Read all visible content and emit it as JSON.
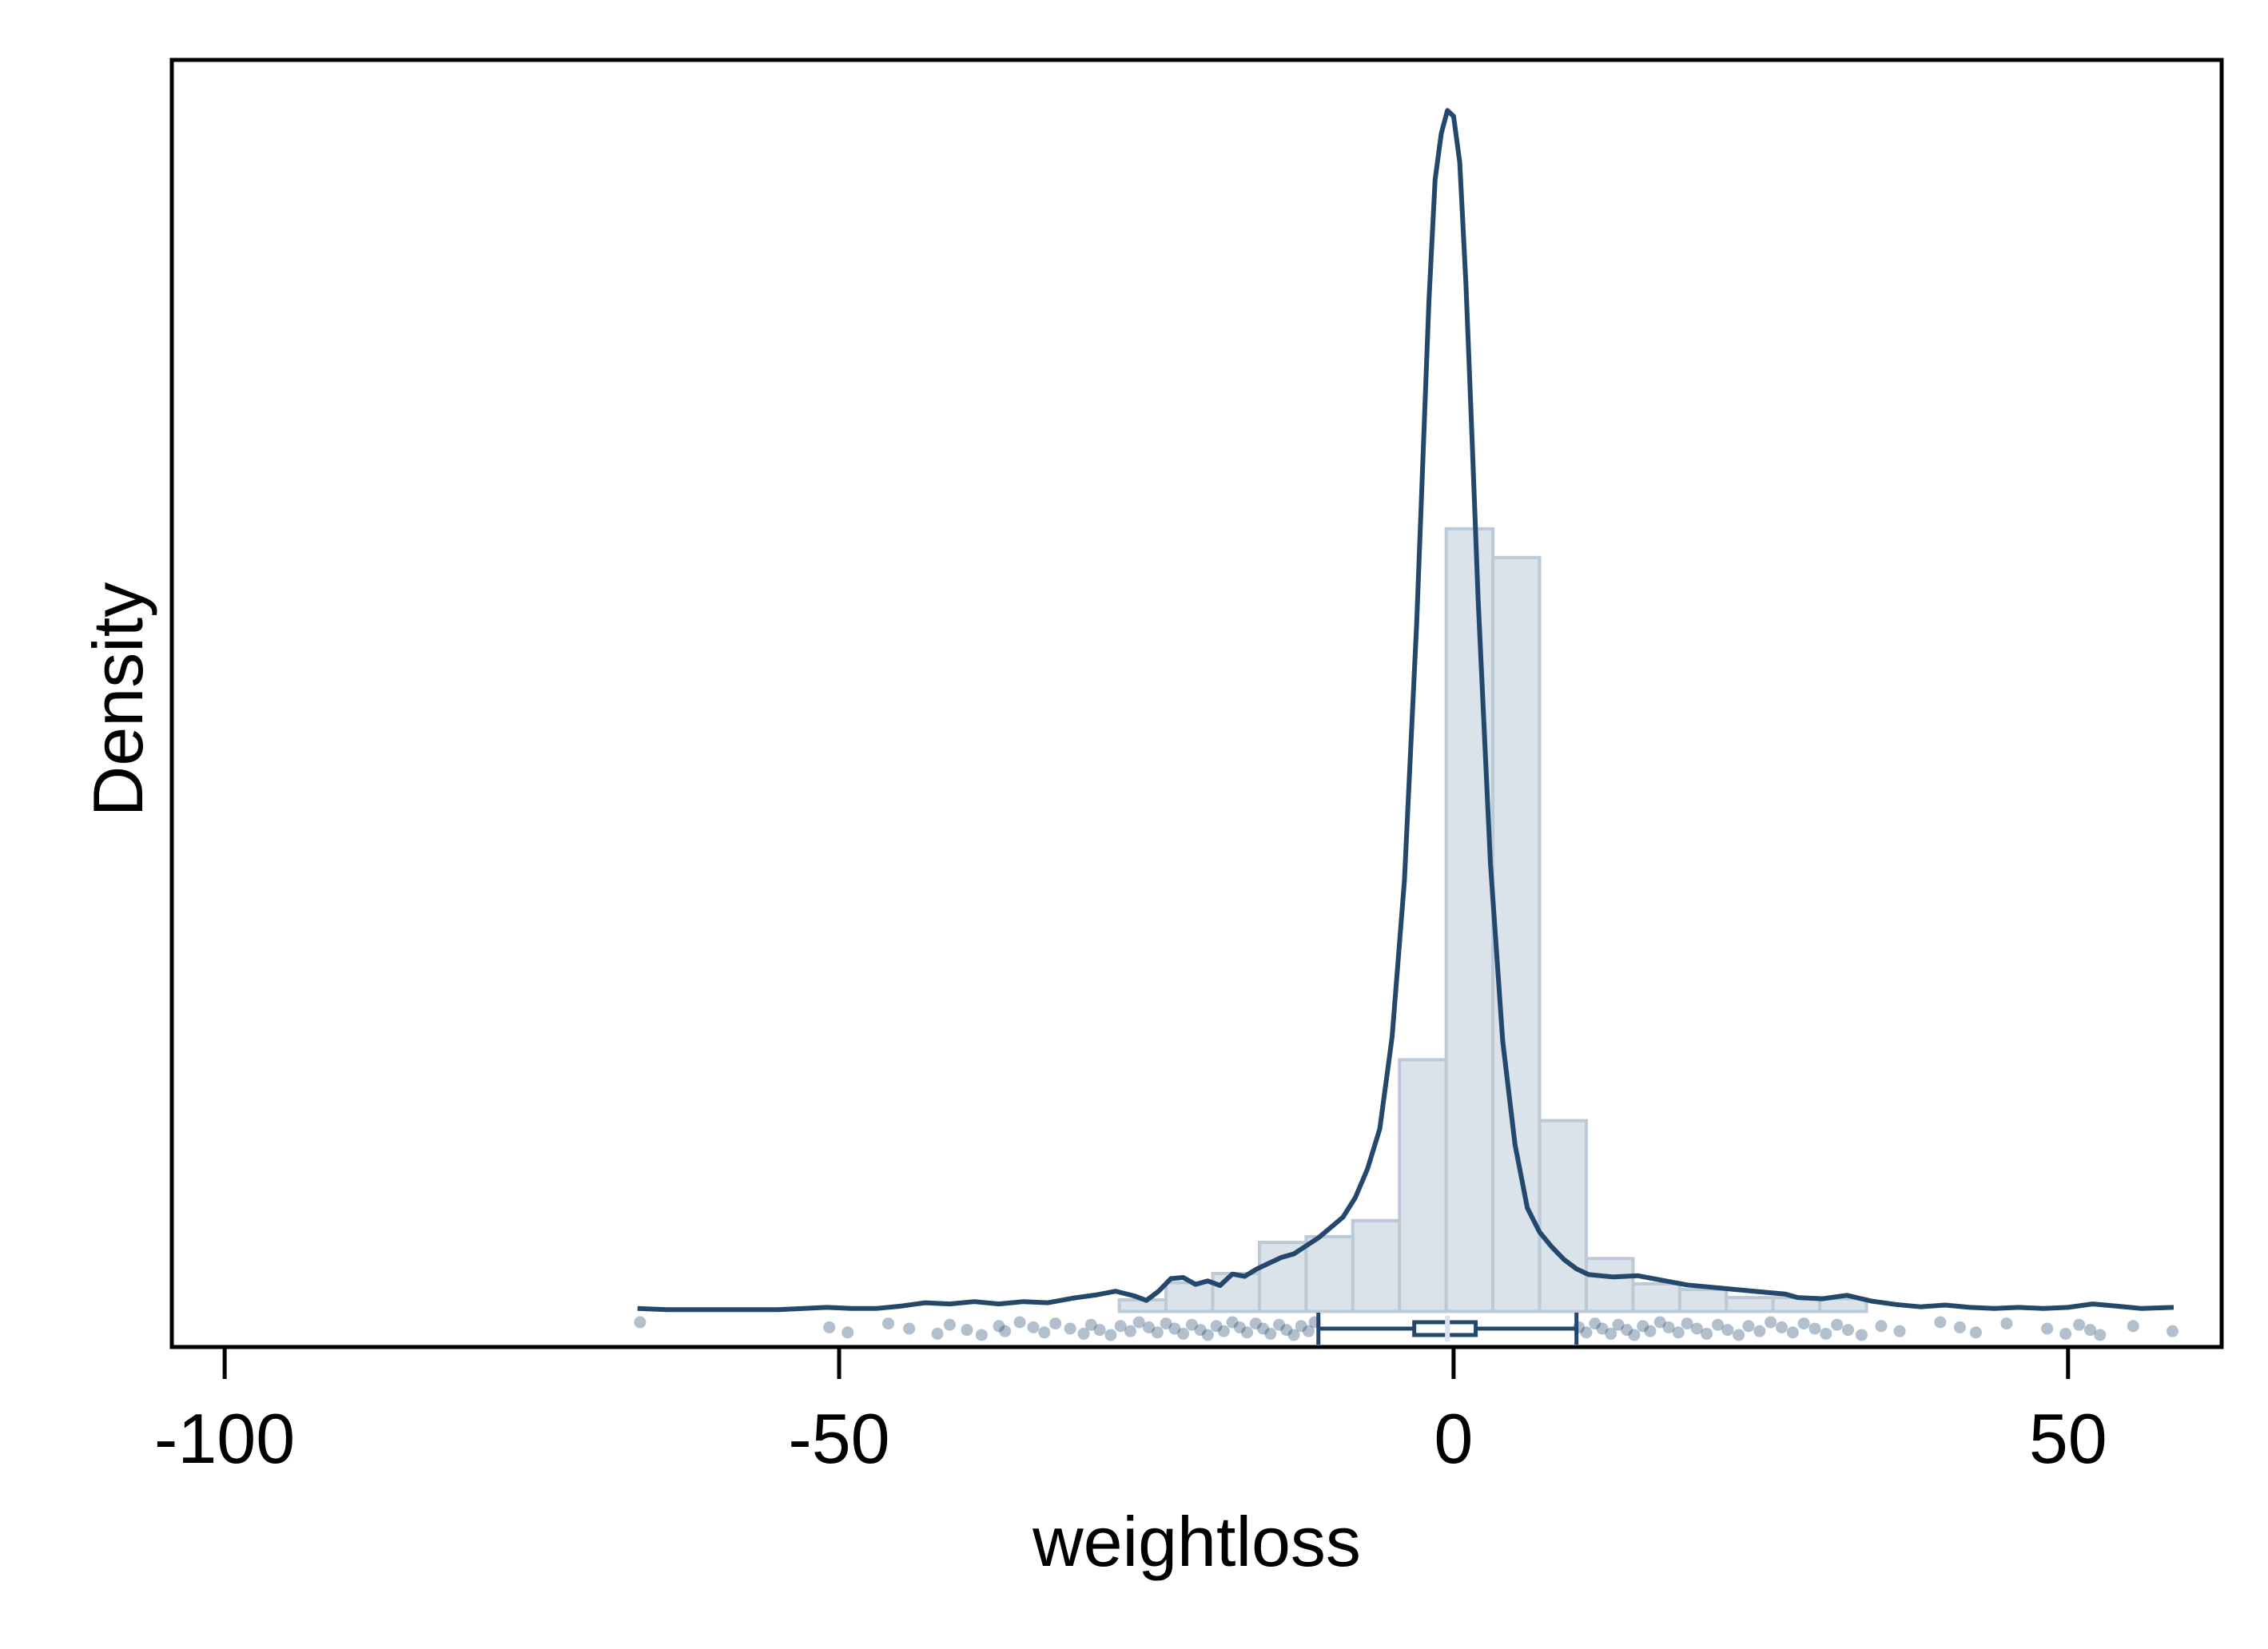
{
  "chart_data": {
    "type": "histogram",
    "xlabel": "weightloss",
    "ylabel": "Density",
    "xlim": [
      -104.3,
      62.5
    ],
    "ylim": [
      -0.0031,
      0.1089
    ],
    "xticks": [
      -100,
      -50,
      0,
      50
    ],
    "y_tick_labels": "none",
    "grid": false,
    "legend": "none",
    "colors": {
      "curve": "#23486c",
      "bar_fill": "#dae2ea",
      "bar_edge": "#bcc9d6",
      "points": "#23486c",
      "frame": "#000000"
    },
    "histogram": {
      "bin_width": 3.8,
      "bin_edges": [
        -27.2,
        -23.4,
        -19.6,
        -15.8,
        -12.0,
        -8.2,
        -4.4,
        -0.6,
        3.2,
        7.0,
        10.8,
        14.6,
        18.4,
        22.2,
        26.0,
        29.8,
        33.6
      ],
      "densities": [
        0.001,
        0.0025,
        0.0033,
        0.006,
        0.0065,
        0.0079,
        0.0219,
        0.0681,
        0.0656,
        0.0166,
        0.0046,
        0.0024,
        0.0019,
        0.0012,
        0.0012,
        0.0011
      ]
    },
    "density_curve": {
      "x": [
        -66.4,
        -64.0,
        -60.0,
        -55.0,
        -51.0,
        -49.0,
        -47.0,
        -45.0,
        -43.0,
        -41.0,
        -39.0,
        -37.0,
        -35.0,
        -33.0,
        -31.0,
        -29.0,
        -27.5,
        -26.0,
        -25.0,
        -24.0,
        -23.0,
        -22.0,
        -21.0,
        -20.0,
        -19.0,
        -18.0,
        -17.0,
        -16.0,
        -15.0,
        -14.0,
        -13.0,
        -12.0,
        -11.0,
        -10.0,
        -9.0,
        -8.0,
        -7.0,
        -6.0,
        -5.0,
        -4.0,
        -3.0,
        -2.0,
        -1.5,
        -1.0,
        -0.5,
        0.0,
        0.5,
        1.0,
        1.5,
        2.0,
        3.0,
        4.0,
        5.0,
        6.0,
        7.0,
        8.0,
        9.0,
        10.0,
        11.0,
        13.0,
        15.0,
        17.0,
        19.0,
        21.0,
        23.0,
        25.0,
        27.0,
        28.0,
        30.0,
        32.0,
        34.0,
        36.0,
        38.0,
        40.0,
        42.0,
        44.0,
        46.0,
        48.0,
        50.0,
        52.0,
        54.0,
        56.0,
        58.6
      ],
      "density": [
        0.00025,
        0.00015,
        0.00015,
        0.00015,
        0.00035,
        0.00025,
        0.00025,
        0.00045,
        0.00075,
        0.00065,
        0.00085,
        0.00065,
        0.00085,
        0.00075,
        0.00115,
        0.00145,
        0.00175,
        0.00135,
        0.00095,
        0.00175,
        0.00285,
        0.00295,
        0.00235,
        0.00265,
        0.00225,
        0.00325,
        0.00305,
        0.0037,
        0.0042,
        0.0047,
        0.005,
        0.0057,
        0.0064,
        0.0073,
        0.0082,
        0.0099,
        0.0124,
        0.0159,
        0.0239,
        0.0375,
        0.06,
        0.088,
        0.0985,
        0.1025,
        0.1045,
        0.104,
        0.1,
        0.0895,
        0.076,
        0.062,
        0.039,
        0.0235,
        0.0145,
        0.009,
        0.0069,
        0.0056,
        0.0045,
        0.0037,
        0.0032,
        0.003,
        0.0031,
        0.0027,
        0.0023,
        0.0021,
        0.0019,
        0.0017,
        0.0015,
        0.0012,
        0.0011,
        0.0014,
        0.0009,
        0.0006,
        0.0004,
        0.00055,
        0.00035,
        0.00025,
        0.00035,
        0.00025,
        0.00035,
        0.00065,
        0.00045,
        0.00025,
        0.00035
      ]
    },
    "boxplot": {
      "whisker_low": -11.0,
      "q1": -3.2,
      "median": -0.5,
      "q3": 1.8,
      "whisker_high": 10.0,
      "y_level": -0.0015
    },
    "raw_points": {
      "y_level": -0.0015,
      "x": [
        -66.2,
        -50.8,
        -49.3,
        -46.0,
        -44.3,
        -42.0,
        -41.0,
        -39.6,
        -38.4,
        -37.0,
        -36.5,
        -35.3,
        -34.2,
        -33.3,
        -32.4,
        -31.2,
        -30.1,
        -29.5,
        -28.8,
        -27.9,
        -27.1,
        -26.3,
        -25.6,
        -24.8,
        -24.1,
        -23.4,
        -22.7,
        -22.0,
        -21.3,
        -20.6,
        -20.0,
        -19.3,
        -18.7,
        -18.0,
        -17.4,
        -16.8,
        -16.1,
        -15.5,
        -14.9,
        -14.2,
        -13.6,
        -13.0,
        -12.4,
        -11.8,
        -11.3,
        10.2,
        10.8,
        11.5,
        12.1,
        12.8,
        13.4,
        14.1,
        14.7,
        15.4,
        16.0,
        16.8,
        17.5,
        18.3,
        19.0,
        19.8,
        20.6,
        21.5,
        22.3,
        23.2,
        24.0,
        24.9,
        25.8,
        26.7,
        27.6,
        28.5,
        29.4,
        30.3,
        31.2,
        32.1,
        33.2,
        34.8,
        36.3,
        39.6,
        41.2,
        42.5,
        45.0,
        48.3,
        49.8,
        50.9,
        51.8,
        52.6,
        55.3,
        58.5
      ]
    }
  }
}
